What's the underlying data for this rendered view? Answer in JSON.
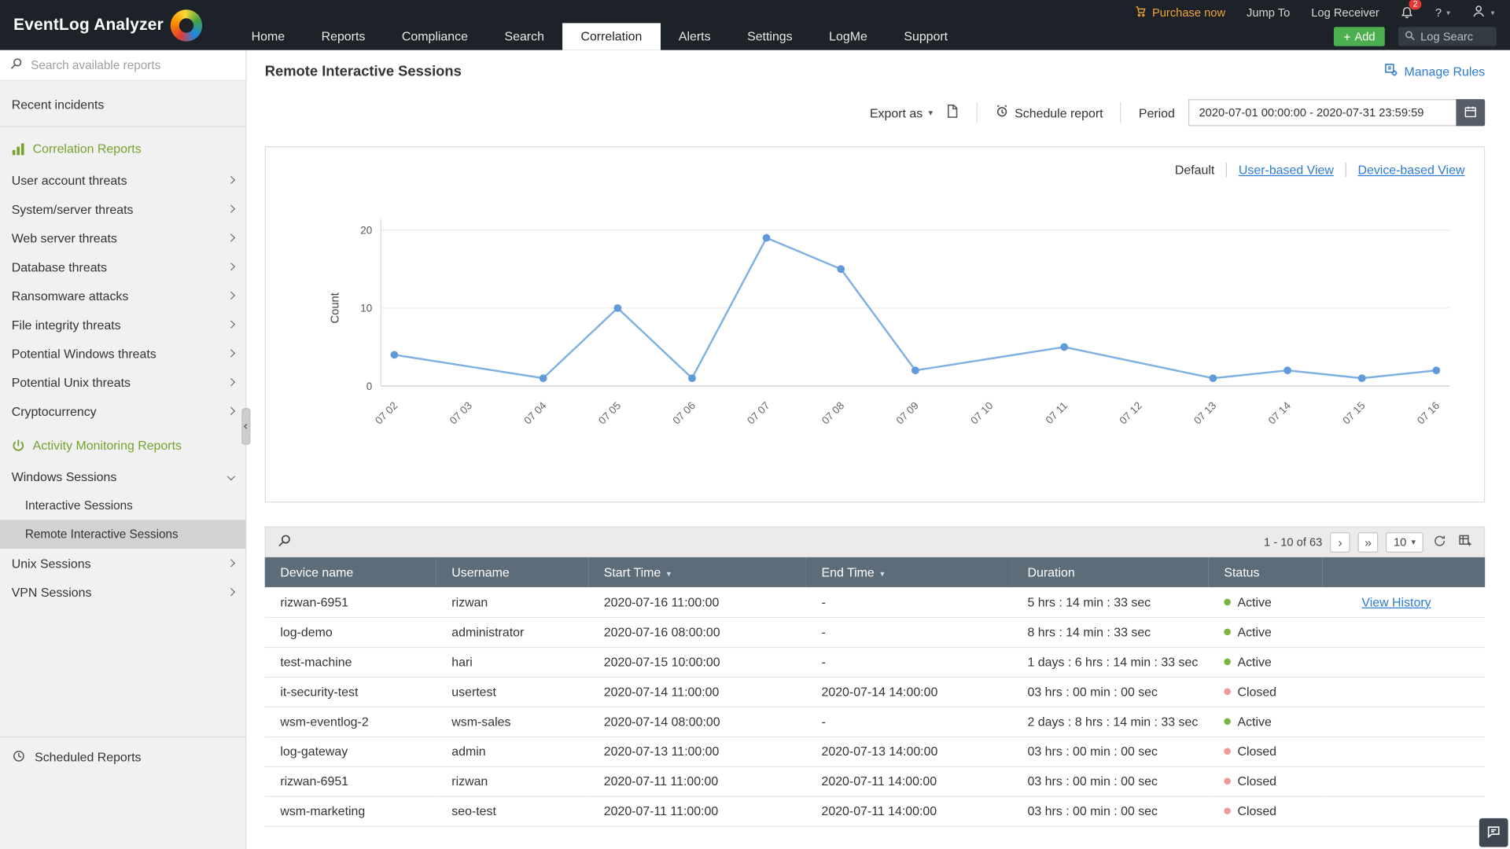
{
  "icons": {
    "dropdown_caret": "▾",
    "plus": "+",
    "next_page": "›",
    "last_page": "»",
    "sort_caret": "▾",
    "help": "?"
  },
  "colors": {
    "accent_green": "#76a22e",
    "link_blue": "#2b7bd3",
    "table_header_bg": "#5d6c79",
    "add_green": "#4caf50",
    "purchase_orange": "#f2a33c",
    "topbar_bg": "#1d2228"
  },
  "topbar": {
    "brand": "EventLog Analyzer",
    "purchase_now": "Purchase now",
    "jump_to": "Jump To",
    "log_receiver": "Log Receiver",
    "notification_count": "2",
    "help": "?",
    "nav": [
      {
        "label": "Home",
        "active": false
      },
      {
        "label": "Reports",
        "active": false
      },
      {
        "label": "Compliance",
        "active": false
      },
      {
        "label": "Search",
        "active": false
      },
      {
        "label": "Correlation",
        "active": true
      },
      {
        "label": "Alerts",
        "active": false
      },
      {
        "label": "Settings",
        "active": false
      },
      {
        "label": "LogMe",
        "active": false
      },
      {
        "label": "Support",
        "active": false
      }
    ],
    "add_label": "Add",
    "search_placeholder": "Log Searc"
  },
  "sidebar": {
    "search_placeholder": "Search available reports",
    "top_item": "Recent incidents",
    "sections": [
      {
        "title": "Correlation Reports",
        "icon": "bar-chart-icon",
        "items": [
          {
            "label": "User account threats",
            "chevron": "right"
          },
          {
            "label": "System/server threats",
            "chevron": "right"
          },
          {
            "label": "Web server threats",
            "chevron": "right"
          },
          {
            "label": "Database threats",
            "chevron": "right"
          },
          {
            "label": "Ransomware attacks",
            "chevron": "right"
          },
          {
            "label": "File integrity threats",
            "chevron": "right"
          },
          {
            "label": "Potential Windows threats",
            "chevron": "right"
          },
          {
            "label": "Potential Unix threats",
            "chevron": "right"
          },
          {
            "label": "Cryptocurrency",
            "chevron": "right"
          }
        ]
      },
      {
        "title": "Activity Monitoring Reports",
        "icon": "power-icon",
        "items": [
          {
            "label": "Windows Sessions",
            "chevron": "down",
            "children": [
              {
                "label": "Interactive Sessions",
                "selected": false
              },
              {
                "label": "Remote Interactive Sessions",
                "selected": true
              }
            ]
          },
          {
            "label": "Unix Sessions",
            "chevron": "right"
          },
          {
            "label": "VPN Sessions",
            "chevron": "right"
          }
        ]
      }
    ],
    "bottom_item": "Scheduled Reports"
  },
  "page": {
    "title": "Remote Interactive Sessions",
    "manage_rules": "Manage Rules",
    "export_as": "Export as",
    "schedule_report": "Schedule report",
    "period_label": "Period",
    "period_value": "2020-07-01 00:00:00 - 2020-07-31 23:59:59",
    "views": {
      "current": "Default",
      "links": [
        "User-based View",
        "Device-based View"
      ]
    }
  },
  "chart_data": {
    "type": "line",
    "title": "",
    "xlabel": "",
    "ylabel": "Count",
    "x": [
      "07 02",
      "07 03",
      "07 04",
      "07 05",
      "07 06",
      "07 07",
      "07 08",
      "07 09",
      "07 10",
      "07 11",
      "07 12",
      "07 13",
      "07 14",
      "07 15",
      "07 16"
    ],
    "values": [
      4,
      2.5,
      1,
      10,
      1,
      19,
      15,
      2,
      3.5,
      5,
      3,
      1,
      2,
      1,
      2
    ],
    "markers": [
      true,
      false,
      true,
      true,
      true,
      true,
      true,
      true,
      false,
      true,
      false,
      true,
      true,
      true,
      true
    ],
    "yticks": [
      0,
      10,
      20
    ],
    "ylim": [
      0,
      21
    ],
    "grid": true,
    "legend": false,
    "line_color": "#7fb0e2",
    "marker_color": "#5f9bd8"
  },
  "table": {
    "pagination": {
      "range": "1 - 10 of 63",
      "page_size": "10"
    },
    "columns": [
      {
        "label": "Device name",
        "sort": false
      },
      {
        "label": "Username",
        "sort": false
      },
      {
        "label": "Start Time",
        "sort": true
      },
      {
        "label": "End Time",
        "sort": true
      },
      {
        "label": "Duration",
        "sort": false
      },
      {
        "label": "Status",
        "sort": false
      },
      {
        "label": "",
        "sort": false
      }
    ],
    "status_colors": {
      "Active": "#7cb342",
      "Closed": "#ef9a9a"
    },
    "rows": [
      {
        "device": "rizwan-6951",
        "user": "rizwan",
        "start": "2020-07-16 11:00:00",
        "end": "-",
        "duration": "5 hrs : 14 min : 33 sec",
        "status": "Active",
        "action": "View History"
      },
      {
        "device": "log-demo",
        "user": "administrator",
        "start": "2020-07-16 08:00:00",
        "end": "-",
        "duration": "8 hrs : 14 min : 33 sec",
        "status": "Active",
        "action": ""
      },
      {
        "device": "test-machine",
        "user": "hari",
        "start": "2020-07-15 10:00:00",
        "end": "-",
        "duration": "1 days : 6 hrs : 14 min : 33 sec",
        "status": "Active",
        "action": ""
      },
      {
        "device": "it-security-test",
        "user": "usertest",
        "start": "2020-07-14 11:00:00",
        "end": "2020-07-14 14:00:00",
        "duration": "03 hrs : 00 min : 00 sec",
        "status": "Closed",
        "action": ""
      },
      {
        "device": "wsm-eventlog-2",
        "user": "wsm-sales",
        "start": "2020-07-14 08:00:00",
        "end": "-",
        "duration": "2 days : 8 hrs : 14 min : 33 sec",
        "status": "Active",
        "action": ""
      },
      {
        "device": "log-gateway",
        "user": "admin",
        "start": "2020-07-13 11:00:00",
        "end": "2020-07-13 14:00:00",
        "duration": "03 hrs : 00 min : 00 sec",
        "status": "Closed",
        "action": ""
      },
      {
        "device": "rizwan-6951",
        "user": "rizwan",
        "start": "2020-07-11 11:00:00",
        "end": "2020-07-11 14:00:00",
        "duration": "03 hrs : 00 min : 00 sec",
        "status": "Closed",
        "action": ""
      },
      {
        "device": "wsm-marketing",
        "user": "seo-test",
        "start": "2020-07-11 11:00:00",
        "end": "2020-07-11 14:00:00",
        "duration": "03 hrs : 00 min : 00 sec",
        "status": "Closed",
        "action": ""
      }
    ]
  }
}
